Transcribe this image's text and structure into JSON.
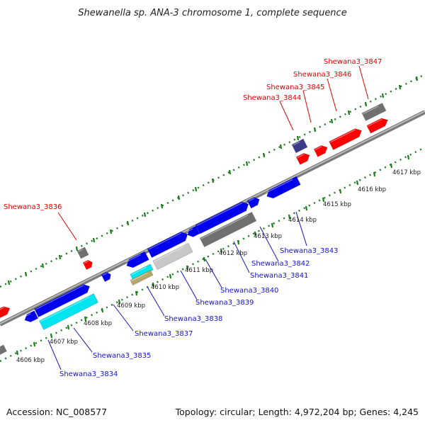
{
  "title": "Shewanella sp. ANA-3 chromosome 1, complete sequence",
  "footer": {
    "accession": "Accession: NC_008577",
    "summary": "Topology: circular; Length: 4,972,204 bp; Genes: 4,245"
  },
  "colors": {
    "backbone": "#8c8c8c",
    "tick_ring": "#1e7a1e",
    "forward_label": "#e00000",
    "reverse_label": "#1414c8",
    "red_gene": "#ff0000",
    "blue_gene": "#0000ee",
    "cyan_gene": "#00e5f0",
    "grey_gene": "#707070",
    "light_grey_gene": "#c8c8c8",
    "tan_gene": "#b6a86a",
    "purple_gene": "#3b3b8c"
  },
  "scale_labels": [
    "4606 kbp",
    "4607 kbp",
    "4608 kbp",
    "4609 kbp",
    "4610 kbp",
    "4611 kbp",
    "4612 kbp",
    "4613 kbp",
    "4614 kbp",
    "4615 kbp",
    "4616 kbp",
    "4617 kbp"
  ],
  "forward_labels": [
    "Shewana3_3836",
    "Shewana3_3844",
    "Shewana3_3845",
    "Shewana3_3846",
    "Shewana3_3847"
  ],
  "reverse_labels": [
    "Shewana3_3834",
    "Shewana3_3835",
    "Shewana3_3837",
    "Shewana3_3838",
    "Shewana3_3839",
    "Shewana3_3840",
    "Shewana3_3841",
    "Shewana3_3842",
    "Shewana3_3843"
  ]
}
